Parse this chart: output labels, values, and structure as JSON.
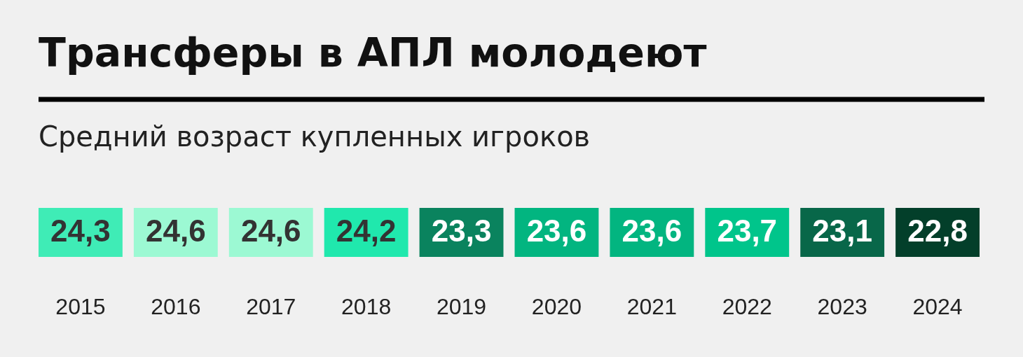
{
  "chart_data": {
    "type": "heatmap",
    "title": "Трансферы в АПЛ молодеют",
    "subtitle": "Средний возраст купленных игроков",
    "categories": [
      "2015",
      "2016",
      "2017",
      "2018",
      "2019",
      "2020",
      "2021",
      "2022",
      "2023",
      "2024"
    ],
    "y_categories": [
      null
    ],
    "cells": [
      [
        24.3,
        24.6,
        24.6,
        24.2,
        23.3,
        23.6,
        23.6,
        23.7,
        23.1,
        22.8
      ]
    ],
    "cell_labels": [
      [
        "24,3",
        "24,6",
        "24,6",
        "24,2",
        "23,3",
        "23,6",
        "23,6",
        "23,7",
        "23,1",
        "22,8"
      ]
    ],
    "tick_labels": "x"
  }
}
